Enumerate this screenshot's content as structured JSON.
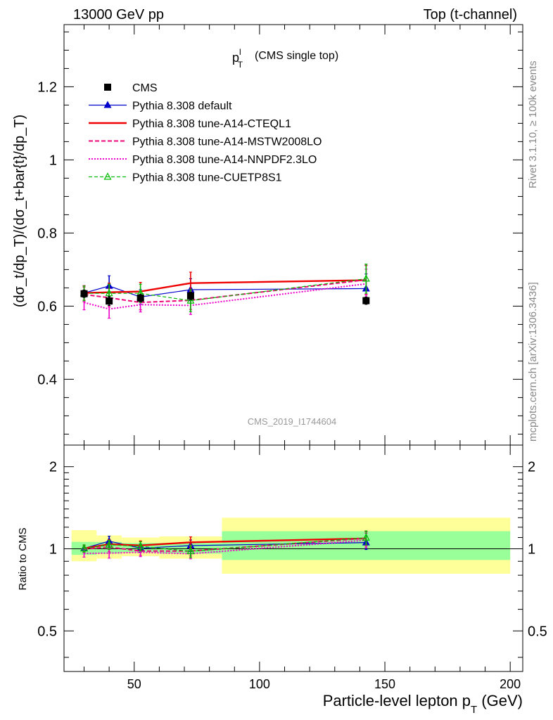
{
  "header": {
    "energy_label": "13000 GeV pp",
    "process_label": "Top (t-channel)"
  },
  "plot_title": {
    "main": "p",
    "sup": "l",
    "sub": "T",
    "note": "(CMS single top)"
  },
  "side_text": {
    "rivet": "Rivet 3.1.10, ≥ 100k events",
    "mcplots": "mcplots.cern.ch [arXiv:1306.3436]"
  },
  "watermark": "CMS_2019_I1744604",
  "x_axis_label": {
    "main": "Particle-level lepton p",
    "sub": "T",
    "unit": " (GeV)"
  },
  "colors": {
    "cms": "#000000",
    "default": "#0000cc",
    "cteql1": "#ee0000",
    "mstw": "#ee0077",
    "nnpdf": "#ee00cc",
    "cuetp": "#00bb00",
    "band_inner": "#99ff99",
    "band_outer": "#ffff99"
  },
  "chart_data": [
    {
      "type": "line",
      "name": "main",
      "ylabel": "(dσ_t/dp_T)/(dσ_t+bar{t}/dp_T)",
      "xlim": [
        22,
        205
      ],
      "ylim": [
        0.22,
        1.37
      ],
      "yticks": [
        0.4,
        0.6,
        0.8,
        1,
        1.2
      ],
      "ytick_labels": [
        "0.4",
        "0.6",
        "0.8",
        "1",
        "1.2"
      ],
      "legend_position": "top-left",
      "x": [
        30,
        40,
        52.5,
        72.5,
        142.5
      ],
      "series": [
        {
          "key": "cms",
          "name": "CMS",
          "style": "marker-square",
          "y": [
            0.634,
            0.614,
            0.622,
            0.628,
            0.615
          ],
          "err": [
            0.01,
            0.012,
            0.01,
            0.01,
            0.01
          ]
        },
        {
          "key": "default",
          "name": "Pythia 8.308 default",
          "style": "line-triangle",
          "y": [
            0.636,
            0.655,
            0.625,
            0.645,
            0.648
          ],
          "err": [
            0.02,
            0.028,
            0.02,
            0.03,
            0.04
          ]
        },
        {
          "key": "cteql1",
          "name": "Pythia 8.308 tune-A14-CTEQL1",
          "style": "solid-thick",
          "y": [
            0.636,
            0.638,
            0.64,
            0.663,
            0.671
          ],
          "err": [
            0.02,
            0.025,
            0.025,
            0.03,
            0.04
          ]
        },
        {
          "key": "mstw",
          "name": "Pythia 8.308 tune-A14-MSTW2008LO",
          "style": "dashed",
          "y": [
            0.632,
            0.623,
            0.61,
            0.616,
            0.672
          ],
          "err": [
            0.02,
            0.025,
            0.02,
            0.025,
            0.04
          ]
        },
        {
          "key": "nnpdf",
          "name": "Pythia 8.308 tune-A14-NNPDF2.3LO",
          "style": "dotted",
          "y": [
            0.61,
            0.592,
            0.604,
            0.602,
            0.661
          ],
          "err": [
            0.02,
            0.025,
            0.02,
            0.025,
            0.04
          ]
        },
        {
          "key": "cuetp",
          "name": "Pythia 8.308 tune-CUETP8S1",
          "style": "dashed-triangle-open",
          "y": [
            0.635,
            0.635,
            0.635,
            0.615,
            0.675
          ],
          "err": [
            0.02,
            0.025,
            0.025,
            0.03,
            0.04
          ]
        }
      ]
    },
    {
      "type": "line",
      "name": "ratio",
      "ylabel": "Ratio to CMS",
      "xlabel": "Particle-level lepton p_T (GeV)",
      "xlim": [
        22,
        205
      ],
      "ylim": [
        0.355,
        2.4
      ],
      "log_y": true,
      "yticks": [
        0.5,
        1,
        2
      ],
      "ytick_labels": [
        "0.5",
        "1",
        "2"
      ],
      "xticks": [
        50,
        100,
        150,
        200
      ],
      "xtick_labels": [
        "50",
        "100",
        "150",
        "200"
      ],
      "bins": [
        [
          25,
          35
        ],
        [
          35,
          45
        ],
        [
          45,
          60
        ],
        [
          60,
          85
        ],
        [
          85,
          200
        ]
      ],
      "band_inner": [
        [
          0.95,
          1.06
        ],
        [
          0.96,
          1.06
        ],
        [
          0.97,
          1.05
        ],
        [
          0.96,
          1.05
        ],
        [
          0.91,
          1.16
        ]
      ],
      "band_outer": [
        [
          0.9,
          1.17
        ],
        [
          0.92,
          1.12
        ],
        [
          0.94,
          1.1
        ],
        [
          0.92,
          1.11
        ],
        [
          0.81,
          1.3
        ]
      ],
      "x": [
        30,
        40,
        52.5,
        72.5,
        142.5
      ],
      "series": [
        {
          "key": "default",
          "y": [
            1.003,
            1.067,
            1.005,
            1.027,
            1.054
          ],
          "err": [
            0.03,
            0.045,
            0.035,
            0.05,
            0.06
          ]
        },
        {
          "key": "cteql1",
          "y": [
            1.003,
            1.039,
            1.029,
            1.056,
            1.091
          ],
          "err": [
            0.03,
            0.04,
            0.04,
            0.05,
            0.065
          ]
        },
        {
          "key": "mstw",
          "y": [
            0.997,
            1.015,
            0.981,
            0.981,
            1.093
          ],
          "err": [
            0.03,
            0.04,
            0.035,
            0.04,
            0.065
          ]
        },
        {
          "key": "nnpdf",
          "y": [
            0.962,
            0.964,
            0.971,
            0.959,
            1.075
          ],
          "err": [
            0.03,
            0.04,
            0.035,
            0.04,
            0.065
          ]
        },
        {
          "key": "cuetp",
          "y": [
            1.002,
            1.034,
            1.021,
            0.979,
            1.098
          ],
          "err": [
            0.03,
            0.04,
            0.04,
            0.05,
            0.065
          ]
        }
      ]
    }
  ]
}
